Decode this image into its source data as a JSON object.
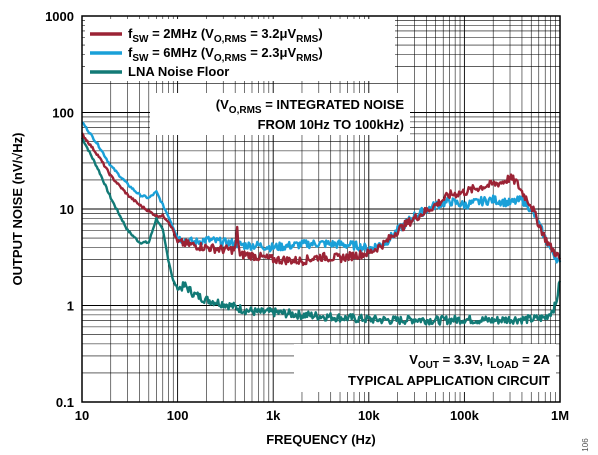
{
  "chart_data": {
    "type": "line",
    "x_scale": "log",
    "y_scale": "log",
    "xlim": [
      10,
      1000000
    ],
    "ylim": [
      0.1,
      1000
    ],
    "xlabel": "FREQUENCY (Hz)",
    "ylabel": "OUTPUT NOISE (nV/√Hz)",
    "x_ticks": [
      "10",
      "100",
      "1k",
      "10k",
      "100k",
      "1M"
    ],
    "y_ticks": [
      "1000",
      "100",
      "10",
      "1",
      "0.1"
    ],
    "grid": true,
    "legend_position": "top-left",
    "legend": [
      {
        "prefix": "f",
        "sub1": "SW",
        "text1": " = 2MHz (V",
        "sub2": "O,RMS",
        "text2": " = 3.2μV",
        "sub3": "RMS",
        "text3": ")"
      },
      {
        "prefix": "f",
        "sub1": "SW",
        "text1": " = 6MHz  (V",
        "sub2": "O,RMS",
        "text2": " = 2.3μV",
        "sub3": "RMS",
        "text3": ")"
      },
      {
        "prefix": "LNA Noise Floor"
      }
    ],
    "annotation_integrated": {
      "line1_a": "(V",
      "line1_sub": "O,RMS",
      "line1_b": " = INTEGRATED NOISE",
      "line2": "FROM 10Hz TO 100kHz)"
    },
    "annotation_conditions": {
      "line1_a": "V",
      "line1_sub1": "OUT",
      "line1_b": " = 3.3V, I",
      "line1_sub2": "LOAD",
      "line1_c": " = 2A",
      "line2": "TYPICAL APPLICATION CIRCUIT"
    },
    "series": [
      {
        "name": "fSW = 2MHz (VO,RMS = 3.2μVRMS)",
        "color": "#9b2335",
        "x": [
          10,
          15,
          20,
          30,
          40,
          50,
          60,
          70,
          80,
          90,
          100,
          150,
          200,
          300,
          400,
          420,
          450,
          500,
          700,
          1000,
          2000,
          3000,
          5000,
          7000,
          10000,
          15000,
          20000,
          30000,
          50000,
          70000,
          100000,
          150000,
          200000,
          250000,
          300000,
          350000,
          400000,
          500000,
          600000,
          700000,
          800000,
          900000,
          1000000
        ],
        "y": [
          60,
          35,
          22,
          14,
          11,
          9.5,
          8.5,
          8.5,
          7.5,
          6,
          4.5,
          4.2,
          4,
          3.8,
          3.8,
          6,
          3.2,
          3.4,
          3.2,
          3,
          2.9,
          3.2,
          3.1,
          3.3,
          3.5,
          4.5,
          6,
          8,
          11,
          14,
          15,
          17,
          18,
          19,
          21,
          19,
          15,
          11,
          7,
          5,
          4,
          3.5,
          3
        ]
      },
      {
        "name": "fSW = 6MHz (VO,RMS = 2.3μVRMS)",
        "color": "#1aa0d8",
        "x": [
          10,
          15,
          20,
          30,
          40,
          50,
          60,
          70,
          80,
          90,
          100,
          150,
          200,
          300,
          400,
          500,
          700,
          1000,
          2000,
          3000,
          5000,
          7000,
          10000,
          15000,
          20000,
          30000,
          50000,
          70000,
          100000,
          150000,
          200000,
          300000,
          400000,
          500000,
          600000,
          700000,
          800000,
          900000,
          1000000
        ],
        "y": [
          80,
          45,
          28,
          18,
          14,
          13,
          15,
          11,
          8.5,
          6.5,
          5,
          4.5,
          4.8,
          4.5,
          4.4,
          4.2,
          4.2,
          4,
          4.3,
          4.4,
          4.3,
          4.2,
          3.9,
          4.5,
          6,
          8.5,
          11,
          12,
          11,
          12,
          12.5,
          11.5,
          12.5,
          10,
          7,
          5,
          3.8,
          3.2,
          2.8
        ]
      },
      {
        "name": "LNA Noise Floor",
        "color": "#127a76",
        "x": [
          10,
          15,
          20,
          30,
          40,
          50,
          60,
          70,
          80,
          90,
          100,
          120,
          150,
          200,
          300,
          500,
          700,
          1000,
          2000,
          3000,
          5000,
          10000,
          20000,
          30000,
          50000,
          100000,
          200000,
          300000,
          500000,
          700000,
          800000,
          900000,
          1000000
        ],
        "y": [
          55,
          25,
          13,
          6,
          4.5,
          4.5,
          8,
          6,
          3,
          1.8,
          1.5,
          1.6,
          1.3,
          1.15,
          1.05,
          0.9,
          0.85,
          0.85,
          0.8,
          0.78,
          0.75,
          0.72,
          0.7,
          0.72,
          0.7,
          0.72,
          0.7,
          0.72,
          0.72,
          0.75,
          0.85,
          1.0,
          1.8
        ]
      }
    ]
  },
  "figure_id": "106"
}
